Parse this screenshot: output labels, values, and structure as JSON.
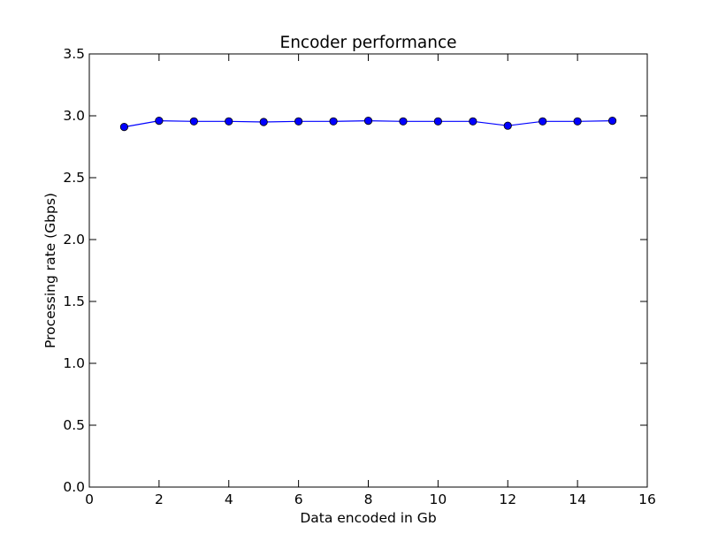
{
  "chart_data": {
    "type": "line",
    "title": "Encoder performance",
    "xlabel": "Data encoded in Gb",
    "ylabel": "Processing rate (Gbps)",
    "xlim": [
      0,
      16
    ],
    "ylim": [
      0,
      3.5
    ],
    "x_ticks": [
      0,
      2,
      4,
      6,
      8,
      10,
      12,
      14,
      16
    ],
    "x_tick_labels": [
      "0",
      "2",
      "4",
      "6",
      "8",
      "10",
      "12",
      "14",
      "16"
    ],
    "y_ticks": [
      0,
      0.5,
      1.0,
      1.5,
      2.0,
      2.5,
      3.0,
      3.5
    ],
    "y_tick_labels": [
      "0.0",
      "0.5",
      "1.0",
      "1.5",
      "2.0",
      "2.5",
      "3.0",
      "3.5"
    ],
    "grid": false,
    "series": [
      {
        "color": "#0000ff",
        "marker": "circle",
        "x": [
          1,
          2,
          3,
          4,
          5,
          6,
          7,
          8,
          9,
          10,
          11,
          12,
          13,
          14,
          15
        ],
        "y": [
          2.91,
          2.96,
          2.955,
          2.955,
          2.95,
          2.955,
          2.955,
          2.96,
          2.955,
          2.955,
          2.955,
          2.92,
          2.955,
          2.955,
          2.96
        ]
      }
    ]
  }
}
